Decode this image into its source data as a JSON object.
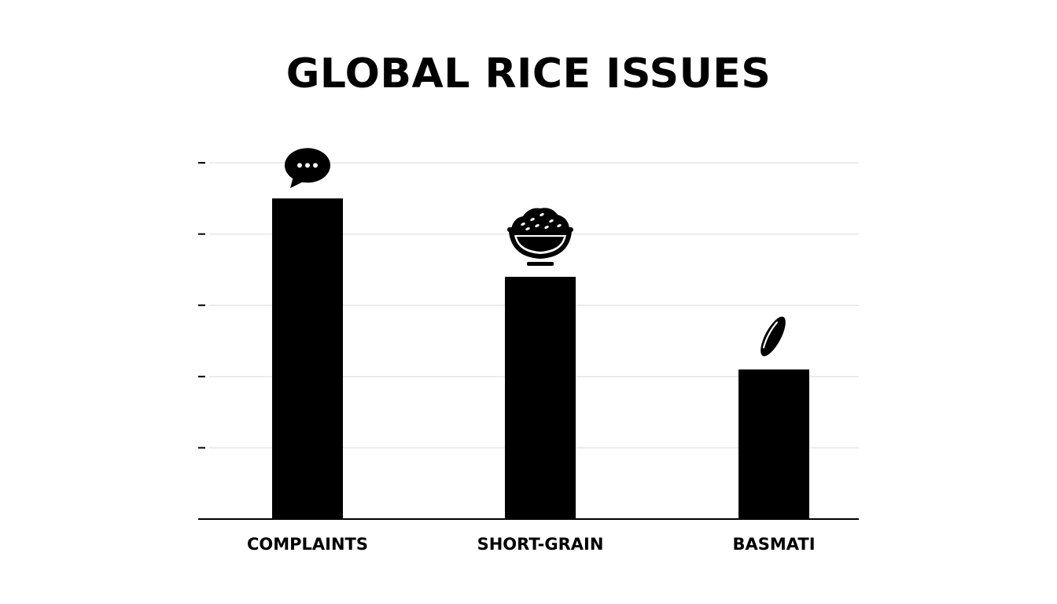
{
  "chart_data": {
    "type": "bar",
    "title": "GLOBAL RICE ISSUES",
    "xlabel": "",
    "ylabel": "",
    "categories": [
      "COMPLAINTS",
      "SHORT-GRAIN",
      "BASMATI"
    ],
    "values": [
      4.5,
      3.4,
      2.1
    ],
    "ylim": [
      0,
      5
    ],
    "y_ticks": [
      1,
      2,
      3,
      4,
      5
    ],
    "y_tick_labels_shown": false,
    "grid": true,
    "legend": "none",
    "icons": [
      "speech-bubble-icon",
      "rice-bowl-icon",
      "rice-grain-icon"
    ],
    "colors": {
      "bar": "#000000",
      "grid": "#e6e6e6",
      "axis": "#000000",
      "background": "#ffffff"
    }
  }
}
